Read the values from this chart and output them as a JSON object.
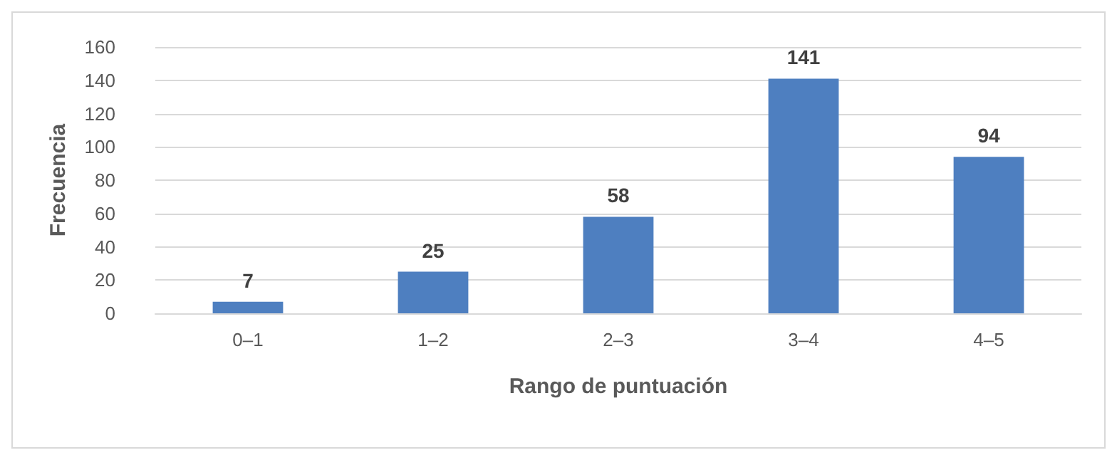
{
  "chart_data": {
    "type": "bar",
    "xlabel": "Rango de puntuación",
    "ylabel": "Frecuencia",
    "categories": [
      "0–1",
      "1–2",
      "2–3",
      "3–4",
      "4–5"
    ],
    "values": [
      7,
      25,
      58,
      141,
      94
    ],
    "color": "#4e7fc0",
    "ylim": [
      0,
      160
    ],
    "yticks": [
      0,
      20,
      40,
      60,
      80,
      100,
      120,
      140,
      160
    ],
    "grid": "y",
    "data_labels": true
  }
}
